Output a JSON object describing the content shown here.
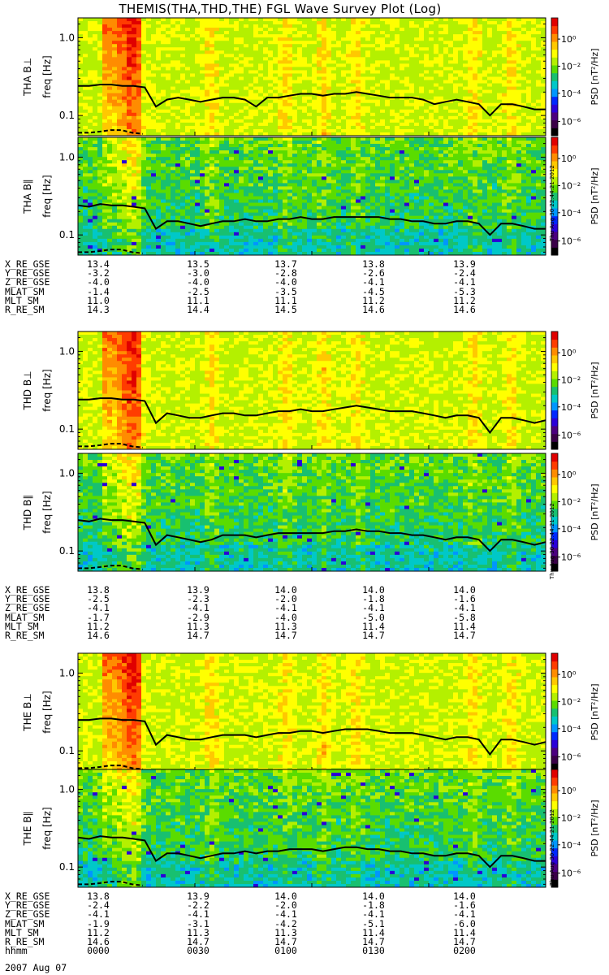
{
  "title": "THEMIS(THA,THD,THE) FGL Wave Survey Plot (Log)",
  "colors": {
    "colorbar": [
      "#000000",
      "#3a0048",
      "#4b007f",
      "#2a00d8",
      "#0028ff",
      "#0096ff",
      "#00c8c8",
      "#18c070",
      "#5adc00",
      "#b4f000",
      "#ffff00",
      "#ffc800",
      "#ff8c00",
      "#ff3c00",
      "#e00000"
    ],
    "trace": "#000000"
  },
  "chart_data": [
    {
      "probe": "tha",
      "component": "perp",
      "type": "heatmap",
      "ylabel": "THA B⊥",
      "yunit": "freq [Hz]",
      "yscale": "log",
      "ylim": [
        0.055,
        1.8
      ],
      "yticks": [
        "1.0",
        "0.1"
      ],
      "colorbar_label": "PSD [nT²/Hz]",
      "colorbar_ticks": [
        "10⁰",
        "10⁻²",
        "10⁻⁴",
        "10⁻⁶"
      ],
      "x_hhmm": [
        "0000",
        "0030",
        "0100",
        "0130",
        "0200"
      ],
      "trace_freq_hz": [
        0.24,
        0.24,
        0.25,
        0.25,
        0.24,
        0.24,
        0.23,
        0.13,
        0.16,
        0.17,
        0.16,
        0.15,
        0.16,
        0.17,
        0.17,
        0.16,
        0.13,
        0.17,
        0.17,
        0.18,
        0.19,
        0.19,
        0.18,
        0.19,
        0.19,
        0.2,
        0.19,
        0.18,
        0.17,
        0.17,
        0.17,
        0.16,
        0.14,
        0.15,
        0.16,
        0.15,
        0.14,
        0.1,
        0.14,
        0.14,
        0.13,
        0.12,
        0.12
      ],
      "trace2_freq_hz": [
        0.06,
        0.06,
        0.062,
        0.065,
        0.065,
        0.06,
        0.058
      ]
    },
    {
      "probe": "tha",
      "component": "para",
      "type": "heatmap",
      "ylabel": "THA B∥",
      "yunit": "freq [Hz]",
      "yscale": "log",
      "ylim": [
        0.055,
        1.8
      ],
      "yticks": [
        "1.0",
        "0.1"
      ],
      "colorbar_label": "PSD [nT²/Hz]",
      "colorbar_ticks": [
        "10⁰",
        "10⁻²",
        "10⁻⁴",
        "10⁻⁶"
      ],
      "trace_freq_hz": [
        0.24,
        0.23,
        0.25,
        0.24,
        0.24,
        0.23,
        0.22,
        0.12,
        0.15,
        0.15,
        0.14,
        0.13,
        0.14,
        0.15,
        0.15,
        0.16,
        0.15,
        0.15,
        0.16,
        0.16,
        0.17,
        0.16,
        0.16,
        0.17,
        0.17,
        0.17,
        0.17,
        0.17,
        0.16,
        0.16,
        0.15,
        0.15,
        0.14,
        0.14,
        0.15,
        0.15,
        0.14,
        0.1,
        0.14,
        0.14,
        0.13,
        0.12,
        0.12
      ],
      "trace2_freq_hz": [
        0.06,
        0.06,
        0.062,
        0.065,
        0.065,
        0.06,
        0.058
      ]
    },
    {
      "probe": "thd",
      "component": "perp",
      "type": "heatmap",
      "ylabel": "THD B⊥",
      "yunit": "freq [Hz]",
      "yscale": "log",
      "ylim": [
        0.055,
        1.8
      ],
      "yticks": [
        "1.0",
        "0.1"
      ],
      "colorbar_label": "PSD [nT²/Hz]",
      "colorbar_ticks": [
        "10⁰",
        "10⁻²",
        "10⁻⁴",
        "10⁻⁶"
      ],
      "trace_freq_hz": [
        0.24,
        0.24,
        0.25,
        0.25,
        0.24,
        0.24,
        0.23,
        0.12,
        0.16,
        0.15,
        0.14,
        0.14,
        0.15,
        0.16,
        0.16,
        0.15,
        0.15,
        0.16,
        0.17,
        0.17,
        0.18,
        0.17,
        0.17,
        0.18,
        0.19,
        0.2,
        0.19,
        0.18,
        0.17,
        0.17,
        0.17,
        0.16,
        0.15,
        0.14,
        0.15,
        0.15,
        0.14,
        0.09,
        0.14,
        0.14,
        0.13,
        0.12,
        0.13
      ],
      "trace2_freq_hz": [
        0.06,
        0.06,
        0.062,
        0.065,
        0.065,
        0.06,
        0.058
      ]
    },
    {
      "probe": "thd",
      "component": "para",
      "type": "heatmap",
      "ylabel": "THD B∥",
      "yunit": "freq [Hz]",
      "yscale": "log",
      "ylim": [
        0.055,
        1.8
      ],
      "yticks": [
        "1.0",
        "0.1"
      ],
      "colorbar_label": "PSD [nT²/Hz]",
      "colorbar_ticks": [
        "10⁰",
        "10⁻²",
        "10⁻⁴",
        "10⁻⁶"
      ],
      "trace_freq_hz": [
        0.25,
        0.24,
        0.26,
        0.25,
        0.25,
        0.24,
        0.23,
        0.12,
        0.16,
        0.15,
        0.14,
        0.13,
        0.14,
        0.16,
        0.16,
        0.16,
        0.15,
        0.16,
        0.17,
        0.17,
        0.17,
        0.17,
        0.17,
        0.18,
        0.18,
        0.19,
        0.18,
        0.18,
        0.17,
        0.17,
        0.16,
        0.16,
        0.15,
        0.14,
        0.15,
        0.15,
        0.14,
        0.1,
        0.14,
        0.14,
        0.13,
        0.12,
        0.13
      ],
      "trace2_freq_hz": [
        0.06,
        0.06,
        0.062,
        0.065,
        0.065,
        0.06,
        0.058
      ]
    },
    {
      "probe": "the",
      "component": "perp",
      "type": "heatmap",
      "ylabel": "THE B⊥",
      "yunit": "freq [Hz]",
      "yscale": "log",
      "ylim": [
        0.055,
        1.8
      ],
      "yticks": [
        "1.0",
        "0.1"
      ],
      "colorbar_label": "PSD [nT²/Hz]",
      "colorbar_ticks": [
        "10⁰",
        "10⁻²",
        "10⁻⁴",
        "10⁻⁶"
      ],
      "trace_freq_hz": [
        0.25,
        0.25,
        0.26,
        0.26,
        0.25,
        0.25,
        0.24,
        0.12,
        0.16,
        0.15,
        0.14,
        0.14,
        0.15,
        0.16,
        0.16,
        0.16,
        0.15,
        0.16,
        0.17,
        0.17,
        0.18,
        0.18,
        0.17,
        0.18,
        0.19,
        0.19,
        0.19,
        0.18,
        0.17,
        0.17,
        0.17,
        0.16,
        0.15,
        0.14,
        0.15,
        0.15,
        0.14,
        0.09,
        0.14,
        0.14,
        0.13,
        0.12,
        0.13
      ],
      "trace2_freq_hz": [
        0.06,
        0.06,
        0.062,
        0.065,
        0.065,
        0.06,
        0.058
      ]
    },
    {
      "probe": "the",
      "component": "para",
      "type": "heatmap",
      "ylabel": "THE B∥",
      "yunit": "freq [Hz]",
      "yscale": "log",
      "ylim": [
        0.055,
        1.8
      ],
      "yticks": [
        "1.0",
        "0.1"
      ],
      "colorbar_label": "PSD [nT²/Hz]",
      "colorbar_ticks": [
        "10⁰",
        "10⁻²",
        "10⁻⁴",
        "10⁻⁶"
      ],
      "trace_freq_hz": [
        0.24,
        0.23,
        0.25,
        0.24,
        0.24,
        0.23,
        0.22,
        0.12,
        0.15,
        0.15,
        0.14,
        0.13,
        0.14,
        0.15,
        0.15,
        0.16,
        0.15,
        0.16,
        0.16,
        0.17,
        0.17,
        0.17,
        0.16,
        0.17,
        0.18,
        0.18,
        0.17,
        0.17,
        0.16,
        0.16,
        0.15,
        0.15,
        0.14,
        0.14,
        0.15,
        0.15,
        0.14,
        0.1,
        0.14,
        0.14,
        0.13,
        0.12,
        0.12
      ],
      "trace2_freq_hz": [
        0.06,
        0.06,
        0.062,
        0.065,
        0.065,
        0.06,
        0.058
      ]
    }
  ],
  "ephemeris": [
    {
      "probe": "tha",
      "rows": [
        {
          "label": "X_RE_GSE",
          "values": [
            "13.4",
            "13.5",
            "13.7",
            "13.8",
            "13.9"
          ]
        },
        {
          "label": "Y_RE_GSE",
          "values": [
            "-3.2",
            "-3.0",
            "-2.8",
            "-2.6",
            "-2.4"
          ]
        },
        {
          "label": "Z_RE_GSE",
          "values": [
            "-4.0",
            "-4.0",
            "-4.0",
            "-4.1",
            "-4.1"
          ]
        },
        {
          "label": "MLAT_SM",
          "values": [
            "-1.4",
            "-2.5",
            "-3.5",
            "-4.5",
            "-5.3"
          ]
        },
        {
          "label": "MLT_SM",
          "values": [
            "11.0",
            "11.1",
            "11.1",
            "11.2",
            "11.2"
          ]
        },
        {
          "label": "R_RE_SM",
          "values": [
            "14.3",
            "14.4",
            "14.5",
            "14.6",
            "14.6"
          ]
        }
      ]
    },
    {
      "probe": "thd",
      "rows": [
        {
          "label": "X_RE_GSE",
          "values": [
            "13.8",
            "13.9",
            "14.0",
            "14.0",
            "14.0"
          ]
        },
        {
          "label": "Y_RE_GSE",
          "values": [
            "-2.5",
            "-2.3",
            "-2.0",
            "-1.8",
            "-1.6"
          ]
        },
        {
          "label": "Z_RE_GSE",
          "values": [
            "-4.1",
            "-4.1",
            "-4.1",
            "-4.1",
            "-4.1"
          ]
        },
        {
          "label": "MLAT_SM",
          "values": [
            "-1.7",
            "-2.9",
            "-4.0",
            "-5.0",
            "-5.8"
          ]
        },
        {
          "label": "MLT_SM",
          "values": [
            "11.2",
            "11.3",
            "11.3",
            "11.4",
            "11.4"
          ]
        },
        {
          "label": "R_RE_SM",
          "values": [
            "14.6",
            "14.7",
            "14.7",
            "14.7",
            "14.7"
          ]
        }
      ]
    },
    {
      "probe": "the",
      "rows": [
        {
          "label": "X_RE_GSE",
          "values": [
            "13.8",
            "13.9",
            "14.0",
            "14.0",
            "14.0"
          ]
        },
        {
          "label": "Y_RE_GSE",
          "values": [
            "-2.4",
            "-2.2",
            "-2.0",
            "-1.8",
            "-1.6"
          ]
        },
        {
          "label": "Z_RE_GSE",
          "values": [
            "-4.1",
            "-4.1",
            "-4.1",
            "-4.1",
            "-4.1"
          ]
        },
        {
          "label": "MLAT_SM",
          "values": [
            "-1.9",
            "-3.1",
            "-4.2",
            "-5.1",
            "-6.0"
          ]
        },
        {
          "label": "MLT_SM",
          "values": [
            "11.2",
            "11.3",
            "11.3",
            "11.4",
            "11.4"
          ]
        },
        {
          "label": "R_RE_SM",
          "values": [
            "14.6",
            "14.7",
            "14.7",
            "14.7",
            "14.7"
          ]
        },
        {
          "label": "hhmm",
          "values": [
            "0000",
            "0030",
            "0100",
            "0130",
            "0200"
          ]
        }
      ]
    }
  ],
  "date_label": "2007 Aug 07",
  "timestamp": "Thu Aug 30 22:44:21 2012"
}
